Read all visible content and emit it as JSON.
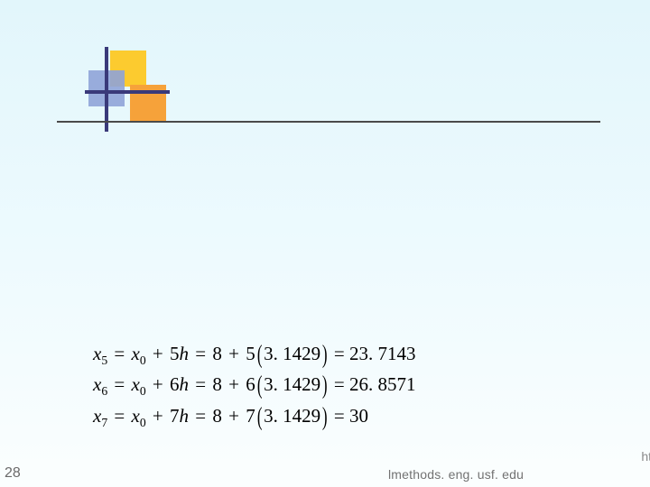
{
  "slide_number": "28",
  "footer_url": "lmethods. eng. usf. edu",
  "edge_fragment": "ht",
  "colors": {
    "background_gradient_top": "#e2f6fb",
    "background_gradient_mid": "#edfafe",
    "background_gradient_bottom": "#fbfefe",
    "square_yellow": "#fccb2f",
    "square_orange": "#f6a23a",
    "square_blue": "#8fa3d8",
    "cross_color": "#3a3a7a",
    "rule_color": "#4a4a4a",
    "text_color": "#000000",
    "footer_text_color": "#727272"
  },
  "typography": {
    "equation_font": "Times New Roman",
    "equation_fontsize_pt": 16,
    "footer_font": "Arial",
    "footer_fontsize_pt": 11
  },
  "equations": [
    {
      "lhs_var": "x",
      "lhs_sub": "5",
      "base_var": "x",
      "base_sub": "0",
      "coef": "5",
      "mult_var": "h",
      "num_base": "8",
      "num_coef": "5",
      "h_value": "3. 1429",
      "result": "23. 7143"
    },
    {
      "lhs_var": "x",
      "lhs_sub": "6",
      "base_var": "x",
      "base_sub": "0",
      "coef": "6",
      "mult_var": "h",
      "num_base": "8",
      "num_coef": "6",
      "h_value": "3. 1429",
      "result": "26. 8571"
    },
    {
      "lhs_var": "x",
      "lhs_sub": "7",
      "base_var": "x",
      "base_sub": "0",
      "coef": "7",
      "mult_var": "h",
      "num_base": "8",
      "num_coef": "7",
      "h_value": "3. 1429",
      "result": "30"
    }
  ]
}
